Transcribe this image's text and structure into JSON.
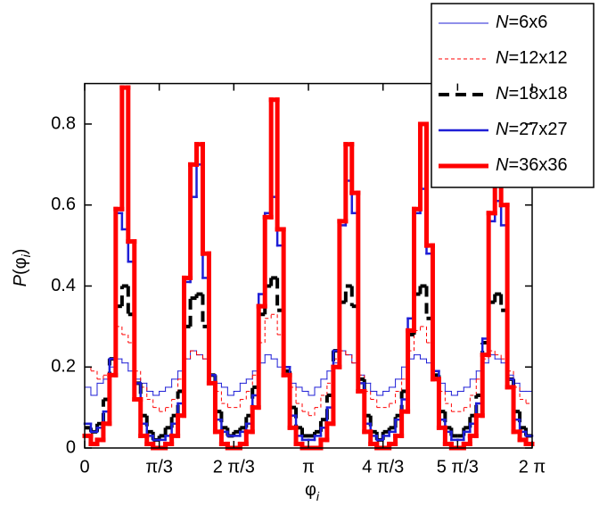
{
  "chart_data": {
    "type": "histogram",
    "xlabel": "φi",
    "ylabel": "P(φi)",
    "xlim": [
      0,
      6.283
    ],
    "ylim": [
      0,
      0.9
    ],
    "xticks": [
      0,
      {
        "value": 1.047,
        "label": "π/3"
      },
      {
        "value": 2.094,
        "label": "2 π/3"
      },
      {
        "value": 3.142,
        "label": "π"
      },
      {
        "value": 4.189,
        "label": "4 π/3"
      },
      {
        "value": 5.236,
        "label": "5 π/3"
      },
      {
        "value": 6.283,
        "label": "2 π"
      }
    ],
    "yticks": [
      0,
      0.2,
      0.4,
      0.6,
      0.8
    ],
    "legend": "top-right",
    "bins": [
      0,
      0.087,
      0.175,
      0.262,
      0.349,
      0.436,
      0.524,
      0.611,
      0.698,
      0.785,
      0.873,
      0.96,
      1.047,
      1.134,
      1.222,
      1.309,
      1.396,
      1.484,
      1.571,
      1.658,
      1.745,
      1.833,
      1.92,
      2.007,
      2.094,
      2.182,
      2.269,
      2.356,
      2.443,
      2.531,
      2.618,
      2.705,
      2.793,
      2.88,
      2.967,
      3.054,
      3.142,
      3.229,
      3.316,
      3.403,
      3.491,
      3.578,
      3.665,
      3.752,
      3.84,
      3.927,
      4.014,
      4.102,
      4.189,
      4.276,
      4.363,
      4.451,
      4.538,
      4.625,
      4.712,
      4.8,
      4.887,
      4.974,
      5.061,
      5.149,
      5.236,
      5.323,
      5.411,
      5.498,
      5.585,
      5.672,
      5.76,
      5.847,
      5.934,
      6.021,
      6.109,
      6.196,
      6.283
    ],
    "series": [
      {
        "name": "N=6x6",
        "color": "#1f1fd6",
        "width": 1,
        "dash": "none",
        "values": [
          0.15,
          0.13,
          0.16,
          0.17,
          0.2,
          0.22,
          0.21,
          0.19,
          0.17,
          0.16,
          0.14,
          0.13,
          0.14,
          0.15,
          0.17,
          0.19,
          0.22,
          0.24,
          0.23,
          0.22,
          0.18,
          0.16,
          0.15,
          0.13,
          0.14,
          0.16,
          0.17,
          0.19,
          0.21,
          0.23,
          0.22,
          0.2,
          0.18,
          0.16,
          0.15,
          0.14,
          0.13,
          0.15,
          0.17,
          0.19,
          0.21,
          0.24,
          0.23,
          0.21,
          0.18,
          0.16,
          0.14,
          0.13,
          0.14,
          0.15,
          0.17,
          0.2,
          0.22,
          0.23,
          0.22,
          0.21,
          0.18,
          0.16,
          0.14,
          0.13,
          0.14,
          0.15,
          0.17,
          0.19,
          0.21,
          0.23,
          0.22,
          0.21,
          0.18,
          0.16,
          0.14,
          0.14
        ]
      },
      {
        "name": "N=12x12",
        "color": "#ff0000",
        "width": 1,
        "dash": "4,3",
        "values": [
          0.2,
          0.19,
          0.17,
          0.18,
          0.22,
          0.3,
          0.28,
          0.26,
          0.19,
          0.15,
          0.12,
          0.1,
          0.09,
          0.1,
          0.12,
          0.17,
          0.22,
          0.24,
          0.23,
          0.22,
          0.18,
          0.14,
          0.11,
          0.1,
          0.1,
          0.12,
          0.14,
          0.18,
          0.26,
          0.32,
          0.33,
          0.28,
          0.2,
          0.15,
          0.11,
          0.09,
          0.08,
          0.1,
          0.13,
          0.16,
          0.22,
          0.24,
          0.23,
          0.21,
          0.18,
          0.14,
          0.12,
          0.1,
          0.1,
          0.11,
          0.14,
          0.17,
          0.24,
          0.29,
          0.3,
          0.26,
          0.19,
          0.14,
          0.11,
          0.09,
          0.09,
          0.1,
          0.13,
          0.17,
          0.22,
          0.24,
          0.23,
          0.22,
          0.19,
          0.15,
          0.12,
          0.11
        ]
      },
      {
        "name": "N=18x18",
        "color": "#000000",
        "width": 4,
        "dash": "12,7",
        "values": [
          0.05,
          0.04,
          0.06,
          0.12,
          0.22,
          0.35,
          0.4,
          0.33,
          0.16,
          0.08,
          0.04,
          0.02,
          0.03,
          0.05,
          0.08,
          0.14,
          0.3,
          0.37,
          0.38,
          0.3,
          0.18,
          0.09,
          0.05,
          0.03,
          0.04,
          0.05,
          0.08,
          0.15,
          0.33,
          0.4,
          0.42,
          0.34,
          0.19,
          0.1,
          0.05,
          0.03,
          0.03,
          0.04,
          0.07,
          0.13,
          0.24,
          0.36,
          0.4,
          0.35,
          0.17,
          0.08,
          0.04,
          0.02,
          0.04,
          0.05,
          0.08,
          0.14,
          0.28,
          0.38,
          0.4,
          0.32,
          0.18,
          0.09,
          0.05,
          0.03,
          0.03,
          0.05,
          0.08,
          0.13,
          0.26,
          0.36,
          0.38,
          0.34,
          0.17,
          0.09,
          0.05,
          0.03
        ]
      },
      {
        "name": "N=27x27",
        "color": "#1f1fd6",
        "width": 2.5,
        "dash": "none",
        "values": [
          0.06,
          0.04,
          0.05,
          0.09,
          0.22,
          0.58,
          0.54,
          0.46,
          0.16,
          0.06,
          0.03,
          0.02,
          0.02,
          0.03,
          0.06,
          0.11,
          0.41,
          0.62,
          0.7,
          0.42,
          0.18,
          0.07,
          0.04,
          0.03,
          0.03,
          0.04,
          0.06,
          0.13,
          0.38,
          0.58,
          0.62,
          0.5,
          0.2,
          0.08,
          0.03,
          0.02,
          0.02,
          0.03,
          0.05,
          0.1,
          0.24,
          0.55,
          0.66,
          0.58,
          0.16,
          0.06,
          0.03,
          0.02,
          0.03,
          0.04,
          0.07,
          0.12,
          0.32,
          0.58,
          0.64,
          0.48,
          0.19,
          0.07,
          0.04,
          0.02,
          0.02,
          0.04,
          0.06,
          0.11,
          0.27,
          0.56,
          0.61,
          0.55,
          0.17,
          0.07,
          0.04,
          0.03
        ]
      },
      {
        "name": "N=36x36",
        "color": "#ff0000",
        "width": 5,
        "dash": "none",
        "values": [
          0.03,
          0.01,
          0.02,
          0.06,
          0.18,
          0.59,
          0.89,
          0.51,
          0.12,
          0.03,
          0.01,
          0.0,
          0.0,
          0.01,
          0.03,
          0.08,
          0.42,
          0.7,
          0.75,
          0.48,
          0.16,
          0.04,
          0.01,
          0.0,
          0.0,
          0.01,
          0.04,
          0.1,
          0.35,
          0.57,
          0.86,
          0.54,
          0.18,
          0.05,
          0.01,
          0.0,
          0.0,
          0.0,
          0.02,
          0.06,
          0.2,
          0.56,
          0.75,
          0.63,
          0.14,
          0.04,
          0.01,
          0.0,
          0.0,
          0.01,
          0.03,
          0.09,
          0.29,
          0.59,
          0.8,
          0.5,
          0.17,
          0.05,
          0.01,
          0.0,
          0.0,
          0.01,
          0.03,
          0.08,
          0.23,
          0.58,
          0.74,
          0.6,
          0.15,
          0.04,
          0.02,
          0.01
        ]
      }
    ]
  }
}
